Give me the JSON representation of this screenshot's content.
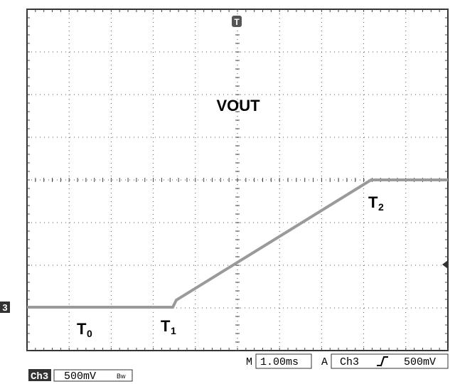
{
  "screen": {
    "channel_marker": "3",
    "trigger_marker": "T",
    "signal_label": "VOUT",
    "time_labels": [
      {
        "main": "T",
        "sub": "0"
      },
      {
        "main": "T",
        "sub": "1"
      },
      {
        "main": "T",
        "sub": "2"
      }
    ],
    "status": {
      "mode": "M",
      "timebase": "1.00ms",
      "trigger_mode": "A",
      "trigger_source": "Ch3",
      "trigger_level": "500mV"
    },
    "channel": {
      "name": "Ch3",
      "scale": "500mV",
      "bw": "Bw"
    }
  }
}
